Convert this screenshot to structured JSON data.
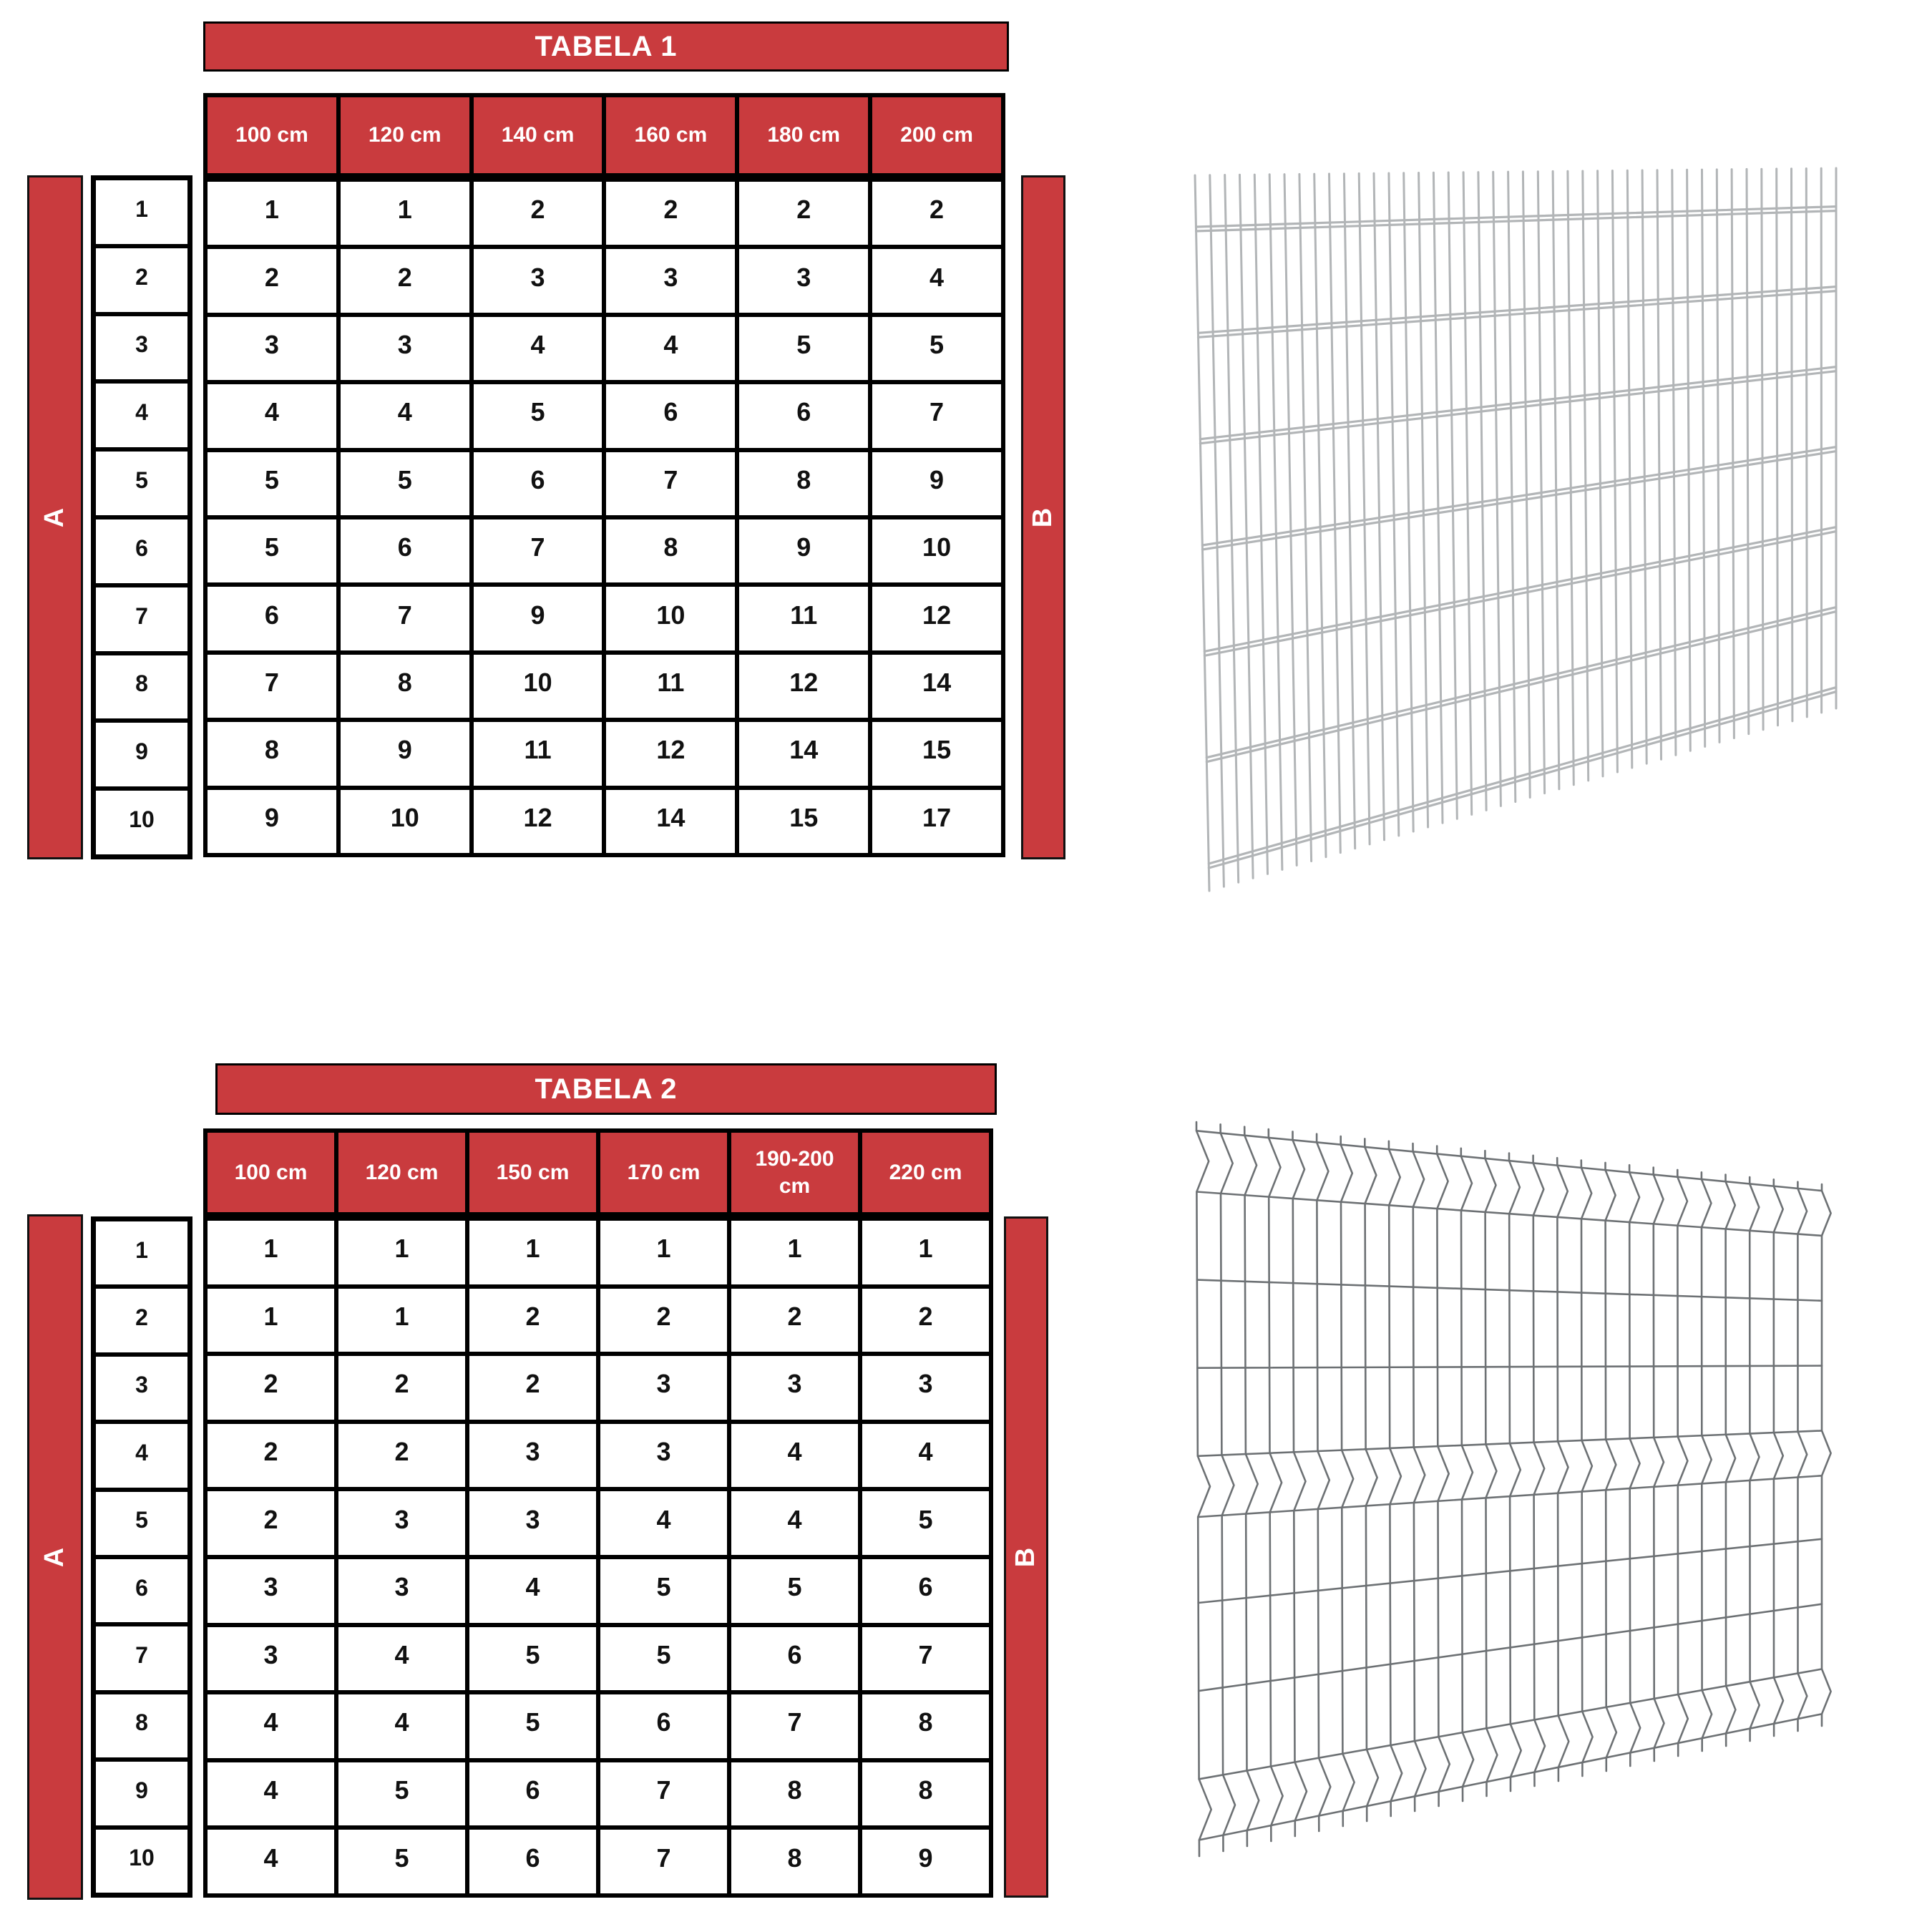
{
  "page": {
    "background": "#ffffff"
  },
  "colors": {
    "accent_red": "#c93b3e",
    "table_border": "#000000",
    "cell_text": "#111111",
    "header_text": "#ffffff",
    "wire_light": "#b2b5b7",
    "wire_dark": "#6d7174"
  },
  "table1": {
    "title": "TABELA 1",
    "left_axis_label": "A",
    "right_axis_label": "B",
    "columns": [
      "100 cm",
      "120 cm",
      "140 cm",
      "160 cm",
      "180 cm",
      "200 cm"
    ],
    "row_labels": [
      "1",
      "2",
      "3",
      "4",
      "5",
      "6",
      "7",
      "8",
      "9",
      "10"
    ],
    "rows": [
      [
        "1",
        "1",
        "2",
        "2",
        "2",
        "2"
      ],
      [
        "2",
        "2",
        "3",
        "3",
        "3",
        "4"
      ],
      [
        "3",
        "3",
        "4",
        "4",
        "5",
        "5"
      ],
      [
        "4",
        "4",
        "5",
        "6",
        "6",
        "7"
      ],
      [
        "5",
        "5",
        "6",
        "7",
        "8",
        "9"
      ],
      [
        "5",
        "6",
        "7",
        "8",
        "9",
        "10"
      ],
      [
        "6",
        "7",
        "9",
        "10",
        "11",
        "12"
      ],
      [
        "7",
        "8",
        "10",
        "11",
        "12",
        "14"
      ],
      [
        "8",
        "9",
        "11",
        "12",
        "14",
        "15"
      ],
      [
        "9",
        "10",
        "12",
        "14",
        "15",
        "17"
      ]
    ]
  },
  "table2": {
    "title": "TABELA 2",
    "left_axis_label": "A",
    "right_axis_label": "B",
    "columns": [
      "100 cm",
      "120 cm",
      "150 cm",
      "170 cm",
      "190-200 cm",
      "220 cm"
    ],
    "row_labels": [
      "1",
      "2",
      "3",
      "4",
      "5",
      "6",
      "7",
      "8",
      "9",
      "10"
    ],
    "rows": [
      [
        "1",
        "1",
        "1",
        "1",
        "1",
        "1"
      ],
      [
        "1",
        "1",
        "2",
        "2",
        "2",
        "2"
      ],
      [
        "2",
        "2",
        "2",
        "3",
        "3",
        "3"
      ],
      [
        "2",
        "2",
        "3",
        "3",
        "4",
        "4"
      ],
      [
        "2",
        "3",
        "3",
        "4",
        "4",
        "5"
      ],
      [
        "3",
        "3",
        "4",
        "5",
        "5",
        "6"
      ],
      [
        "3",
        "4",
        "5",
        "5",
        "6",
        "7"
      ],
      [
        "4",
        "4",
        "5",
        "6",
        "7",
        "8"
      ],
      [
        "4",
        "5",
        "6",
        "7",
        "8",
        "8"
      ],
      [
        "4",
        "5",
        "6",
        "7",
        "8",
        "9"
      ]
    ]
  },
  "illustrations": {
    "fence1": "2d-double-wire-mesh-panel",
    "fence2": "3d-v-bend-mesh-panel"
  }
}
